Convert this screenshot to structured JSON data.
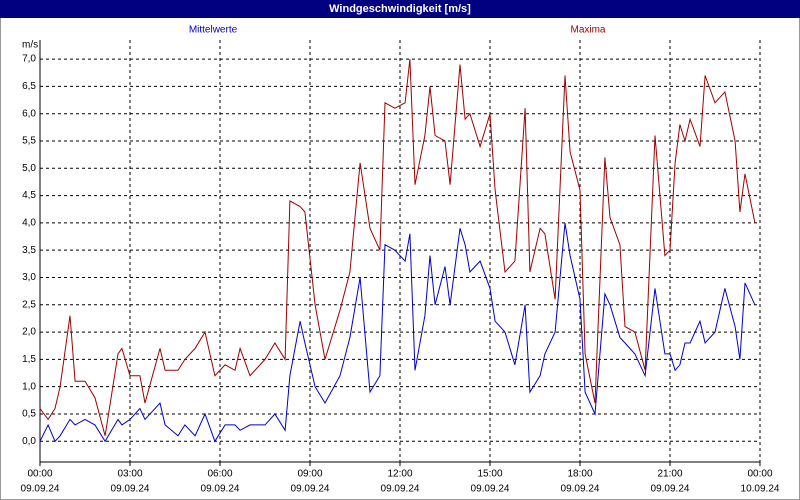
{
  "chart_data": {
    "type": "line",
    "title": "Windgeschwindigkeit [m/s]",
    "y_label": "m/s",
    "x": [
      0,
      0.27,
      0.5,
      0.67,
      1,
      1.17,
      1.5,
      1.83,
      2.17,
      2.6,
      2.73,
      3,
      3.33,
      3.5,
      4,
      4.17,
      4.6,
      4.83,
      5.17,
      5.5,
      5.83,
      6.17,
      6.5,
      6.67,
      7,
      7.5,
      7.83,
      8.17,
      8.33,
      8.67,
      8.83,
      9.17,
      9.5,
      10,
      10.33,
      10.67,
      11,
      11.33,
      11.5,
      11.83,
      12.17,
      12.33,
      12.5,
      12.83,
      13,
      13.17,
      13.5,
      13.67,
      14,
      14.17,
      14.33,
      14.67,
      15,
      15.17,
      15.5,
      15.83,
      16.17,
      16.33,
      16.67,
      16.83,
      17.17,
      17.5,
      17.67,
      18,
      18.17,
      18.5,
      18.83,
      19,
      19.33,
      19.5,
      19.83,
      20.17,
      20.5,
      20.83,
      21,
      21.17,
      21.33,
      21.5,
      21.67,
      22,
      22.17,
      22.5,
      22.83,
      23.17,
      23.33,
      23.5,
      23.83
    ],
    "series": [
      {
        "name": "Mittelwerte",
        "color": "#0000cc",
        "values": [
          0.0,
          0.3,
          0.0,
          0.1,
          0.4,
          0.3,
          0.4,
          0.3,
          0.0,
          0.4,
          0.3,
          0.4,
          0.6,
          0.4,
          0.7,
          0.3,
          0.1,
          0.3,
          0.1,
          0.5,
          0.0,
          0.3,
          0.3,
          0.2,
          0.3,
          0.3,
          0.5,
          0.2,
          1.2,
          2.2,
          1.8,
          1.0,
          0.7,
          1.2,
          1.9,
          3.0,
          0.9,
          1.2,
          3.6,
          3.5,
          3.3,
          3.8,
          1.3,
          2.3,
          3.4,
          2.5,
          3.2,
          2.5,
          3.9,
          3.6,
          3.1,
          3.3,
          2.8,
          2.2,
          2.0,
          1.4,
          2.5,
          0.9,
          1.2,
          1.6,
          2.0,
          4.0,
          3.4,
          2.6,
          0.9,
          0.5,
          2.7,
          2.5,
          1.9,
          1.8,
          1.6,
          1.2,
          2.8,
          1.6,
          1.6,
          1.3,
          1.4,
          1.8,
          1.8,
          2.2,
          1.8,
          2.0,
          2.8,
          2.1,
          1.5,
          2.9,
          2.5
        ]
      },
      {
        "name": "Maxima",
        "color": "#a00000",
        "values": [
          0.6,
          0.4,
          0.6,
          1.0,
          2.3,
          1.1,
          1.1,
          0.8,
          0.1,
          1.6,
          1.7,
          1.2,
          1.2,
          0.7,
          1.7,
          1.3,
          1.3,
          1.5,
          1.7,
          2.0,
          1.2,
          1.4,
          1.3,
          1.7,
          1.2,
          1.5,
          1.8,
          1.5,
          4.4,
          4.3,
          4.2,
          2.5,
          1.5,
          2.4,
          3.1,
          5.1,
          3.9,
          3.5,
          6.2,
          6.1,
          6.2,
          7.0,
          4.7,
          5.6,
          6.5,
          5.6,
          5.5,
          4.7,
          6.9,
          5.9,
          6.0,
          5.4,
          6.0,
          4.6,
          3.1,
          3.3,
          6.1,
          3.1,
          3.9,
          3.8,
          2.6,
          6.7,
          5.3,
          4.6,
          1.6,
          0.7,
          5.2,
          4.1,
          3.6,
          2.1,
          2.0,
          1.3,
          5.6,
          3.4,
          3.5,
          5.1,
          5.8,
          5.5,
          5.9,
          5.4,
          6.7,
          6.2,
          6.4,
          5.5,
          4.2,
          4.9,
          4.0
        ]
      }
    ],
    "xlim": [
      0,
      24
    ],
    "xticks": [
      {
        "value": 0,
        "label": "00:00",
        "date": "09.09.24"
      },
      {
        "value": 3,
        "label": "03:00",
        "date": "09.09.24"
      },
      {
        "value": 6,
        "label": "06:00",
        "date": "09.09.24"
      },
      {
        "value": 9,
        "label": "09:00",
        "date": "09.09.24"
      },
      {
        "value": 12,
        "label": "12:00",
        "date": "09.09.24"
      },
      {
        "value": 15,
        "label": "15:00",
        "date": "09.09.24"
      },
      {
        "value": 18,
        "label": "18:00",
        "date": "09.09.24"
      },
      {
        "value": 21,
        "label": "21:00",
        "date": "09.09.24"
      },
      {
        "value": 24,
        "label": "00:00",
        "date": "10.09.24"
      }
    ],
    "ylim": [
      -0.38,
      7.35
    ],
    "yticks": [
      {
        "value": 0,
        "label": "0,0"
      },
      {
        "value": 0.5,
        "label": "0,5"
      },
      {
        "value": 1,
        "label": "1,0"
      },
      {
        "value": 1.5,
        "label": "1,5"
      },
      {
        "value": 2,
        "label": "2,0"
      },
      {
        "value": 2.5,
        "label": "2,5"
      },
      {
        "value": 3,
        "label": "3,0"
      },
      {
        "value": 3.5,
        "label": "3,5"
      },
      {
        "value": 4,
        "label": "4,0"
      },
      {
        "value": 4.5,
        "label": "4,5"
      },
      {
        "value": 5,
        "label": "5,0"
      },
      {
        "value": 5.5,
        "label": "5,5"
      },
      {
        "value": 6,
        "label": "6,0"
      },
      {
        "value": 6.5,
        "label": "6,5"
      },
      {
        "value": 7,
        "label": "7,0"
      }
    ],
    "grid": true
  }
}
